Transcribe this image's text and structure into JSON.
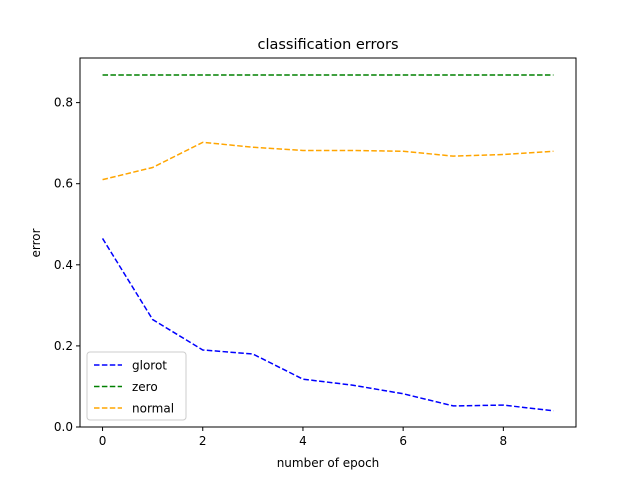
{
  "chart_data": {
    "type": "line",
    "title": "classification errors",
    "xlabel": "number of epoch",
    "ylabel": "error",
    "xlim": [
      -0.45,
      9.45
    ],
    "ylim": [
      0.0,
      0.91
    ],
    "xticks": [
      0,
      2,
      4,
      6,
      8
    ],
    "yticks": [
      0.0,
      0.2,
      0.4,
      0.6,
      0.8
    ],
    "xtick_labels": [
      "0",
      "2",
      "4",
      "6",
      "8"
    ],
    "ytick_labels": [
      "0.0",
      "0.2",
      "0.4",
      "0.6",
      "0.8"
    ],
    "grid": false,
    "legend_position": "lower-left",
    "x": [
      0,
      1,
      2,
      3,
      4,
      5,
      6,
      7,
      8,
      9
    ],
    "series": [
      {
        "name": "glorot",
        "color": "#0000ff",
        "line_style": "dashed",
        "values": [
          0.465,
          0.265,
          0.19,
          0.18,
          0.118,
          0.103,
          0.082,
          0.052,
          0.054,
          0.04
        ]
      },
      {
        "name": "zero",
        "color": "#008000",
        "line_style": "dashed",
        "values": [
          0.868,
          0.868,
          0.868,
          0.868,
          0.868,
          0.868,
          0.868,
          0.868,
          0.868,
          0.868
        ]
      },
      {
        "name": "normal",
        "color": "#ffa500",
        "line_style": "dashed",
        "values": [
          0.61,
          0.64,
          0.702,
          0.69,
          0.682,
          0.682,
          0.68,
          0.668,
          0.672,
          0.68
        ]
      }
    ]
  }
}
